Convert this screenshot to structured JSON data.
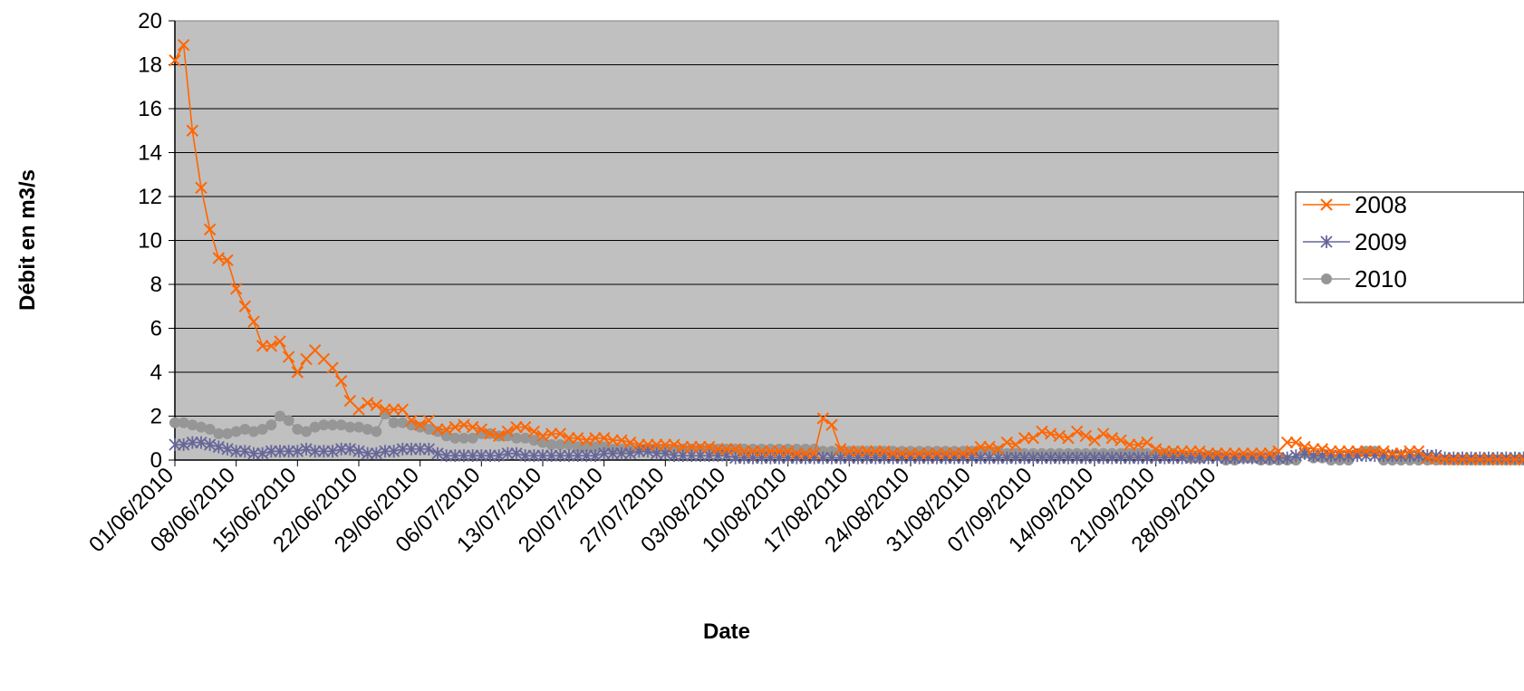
{
  "chart_data": {
    "type": "line",
    "title": "",
    "xlabel": "Date",
    "ylabel": "Débit en m3/s",
    "x_start": "01/06/2010",
    "x_end": "05/10/2010",
    "xlim": [
      "01/06/2010",
      "05/10/2010"
    ],
    "ylim": [
      0,
      20
    ],
    "y_ticks": [
      0,
      2,
      4,
      6,
      8,
      10,
      12,
      14,
      16,
      18,
      20
    ],
    "x_ticks": [
      "01/06/2010",
      "08/06/2010",
      "15/06/2010",
      "22/06/2010",
      "29/06/2010",
      "06/07/2010",
      "13/07/2010",
      "20/07/2010",
      "27/07/2010",
      "03/08/2010",
      "10/08/2010",
      "17/08/2010",
      "24/08/2010",
      "31/08/2010",
      "07/09/2010",
      "14/09/2010",
      "21/09/2010",
      "28/09/2010"
    ],
    "grid": true,
    "plot_background": "#c0c0c0",
    "legend_position": "right",
    "series": [
      {
        "name": "2008",
        "color": "#ff6600",
        "marker": "x",
        "values": [
          18.2,
          18.9,
          15.0,
          12.4,
          10.5,
          9.2,
          9.1,
          7.8,
          7.0,
          6.3,
          5.2,
          5.2,
          5.4,
          4.7,
          4.0,
          4.6,
          5.0,
          4.6,
          4.2,
          3.6,
          2.7,
          2.3,
          2.6,
          2.5,
          2.3,
          2.3,
          2.3,
          1.8,
          1.6,
          1.8,
          1.4,
          1.4,
          1.5,
          1.6,
          1.5,
          1.4,
          1.2,
          1.1,
          1.3,
          1.5,
          1.5,
          1.3,
          1.1,
          1.2,
          1.2,
          1.0,
          1.0,
          0.9,
          1.0,
          1.0,
          0.9,
          0.9,
          0.8,
          0.7,
          0.7,
          0.7,
          0.7,
          0.7,
          0.6,
          0.6,
          0.6,
          0.6,
          0.5,
          0.5,
          0.5,
          0.4,
          0.4,
          0.4,
          0.4,
          0.4,
          0.4,
          0.3,
          0.3,
          0.3,
          1.9,
          1.6,
          0.5,
          0.4,
          0.4,
          0.4,
          0.4,
          0.4,
          0.3,
          0.3,
          0.3,
          0.3,
          0.3,
          0.3,
          0.3,
          0.3,
          0.3,
          0.4,
          0.6,
          0.6,
          0.5,
          0.8,
          0.7,
          1.0,
          1.0,
          1.3,
          1.2,
          1.1,
          1.0,
          1.3,
          1.1,
          0.9,
          1.2,
          1.0,
          0.9,
          0.7,
          0.7,
          0.8,
          0.5,
          0.4,
          0.4,
          0.4,
          0.4,
          0.4,
          0.3,
          0.3,
          0.3,
          0.3,
          0.3,
          0.3,
          0.3,
          0.3,
          0.4,
          0.8,
          0.8,
          0.6,
          0.5,
          0.5,
          0.4,
          0.4,
          0.4,
          0.4,
          0.4,
          0.4,
          0.4,
          0.3,
          0.3,
          0.4,
          0.4,
          0.1,
          0.05,
          0.03,
          0.02,
          0.02,
          0.02,
          0.02,
          0.02,
          0.02,
          0.02,
          0.02,
          0.02,
          0.02,
          0.02,
          0.02,
          0.02,
          0.02,
          0.02,
          0.02,
          0.02,
          0.02,
          0.02,
          0.02,
          0.02,
          0.02,
          0.02,
          0.02,
          0.02,
          0.02,
          0.02,
          0.02,
          0.02,
          0.02,
          0.02,
          0.02,
          0.02,
          0.02,
          0.02,
          0.02,
          0.02,
          0.02,
          0.02
        ]
      },
      {
        "name": "2009",
        "color": "#666699",
        "marker": "asterisk",
        "values": [
          0.7,
          0.7,
          0.8,
          0.8,
          0.7,
          0.6,
          0.5,
          0.4,
          0.4,
          0.3,
          0.3,
          0.4,
          0.4,
          0.4,
          0.4,
          0.5,
          0.4,
          0.4,
          0.4,
          0.5,
          0.5,
          0.4,
          0.3,
          0.3,
          0.4,
          0.4,
          0.5,
          0.5,
          0.5,
          0.5,
          0.3,
          0.2,
          0.2,
          0.2,
          0.2,
          0.2,
          0.2,
          0.2,
          0.3,
          0.3,
          0.2,
          0.2,
          0.2,
          0.2,
          0.2,
          0.2,
          0.2,
          0.2,
          0.2,
          0.3,
          0.3,
          0.3,
          0.3,
          0.4,
          0.4,
          0.3,
          0.3,
          0.2,
          0.2,
          0.2,
          0.2,
          0.2,
          0.2,
          0.2,
          0.1,
          0.1,
          0.1,
          0.1,
          0.1,
          0.1,
          0.1,
          0.1,
          0.1,
          0.1,
          0.1,
          0.1,
          0.1,
          0.1,
          0.1,
          0.1,
          0.1,
          0.1,
          0.1,
          0.1,
          0.1,
          0.1,
          0.1,
          0.1,
          0.1,
          0.1,
          0.1,
          0.1,
          0.1,
          0.1,
          0.1,
          0.1,
          0.1,
          0.1,
          0.1,
          0.1,
          0.1,
          0.1,
          0.1,
          0.1,
          0.1,
          0.1,
          0.1,
          0.1,
          0.1,
          0.1,
          0.1,
          0.1,
          0.1,
          0.1,
          0.1,
          0.1,
          0.1,
          0.1,
          0.1,
          0.1,
          0.1,
          0.1,
          0.1,
          0.1,
          0.1,
          0.1,
          0.1,
          0.1,
          0.2,
          0.3,
          0.2,
          0.2,
          0.2,
          0.2,
          0.2,
          0.2,
          0.2,
          0.2,
          0.2,
          0.2,
          0.2,
          0.2,
          0.2,
          0.2,
          0.2,
          0.1,
          0.1,
          0.1,
          0.1,
          0.1,
          0.1,
          0.1,
          0.1,
          0.1,
          0.1,
          0.1,
          0.2,
          0.2,
          0.2,
          0.2,
          0.2,
          0.2,
          0.2,
          0.2,
          0.2,
          0.2,
          0.2,
          0.2,
          0.2,
          0.2,
          0.2,
          0.2,
          0.2,
          0.2,
          0.2,
          0.2,
          0.2,
          0.2,
          0.2,
          0.2,
          0.2,
          0.2,
          0.2,
          0.2,
          0.2,
          0.2,
          0.2,
          0.2,
          0.2
        ]
      },
      {
        "name": "2010",
        "color": "#969696",
        "marker": "circle",
        "values": [
          1.7,
          1.7,
          1.6,
          1.5,
          1.4,
          1.2,
          1.2,
          1.3,
          1.4,
          1.3,
          1.4,
          1.6,
          2.0,
          1.8,
          1.4,
          1.3,
          1.5,
          1.6,
          1.6,
          1.6,
          1.5,
          1.5,
          1.4,
          1.3,
          2.1,
          1.7,
          1.7,
          1.6,
          1.5,
          1.4,
          1.3,
          1.1,
          1.0,
          1.0,
          1.0,
          1.2,
          1.2,
          1.1,
          1.1,
          1.0,
          1.0,
          0.9,
          0.8,
          0.7,
          0.7,
          0.7,
          0.6,
          0.6,
          0.6,
          0.6,
          0.5,
          0.5,
          0.5,
          0.5,
          0.5,
          0.5,
          0.5,
          0.5,
          0.5,
          0.5,
          0.5,
          0.5,
          0.5,
          0.5,
          0.5,
          0.5,
          0.5,
          0.5,
          0.5,
          0.5,
          0.5,
          0.5,
          0.5,
          0.5,
          0.4,
          0.4,
          0.4,
          0.4,
          0.4,
          0.4,
          0.4,
          0.4,
          0.4,
          0.4,
          0.4,
          0.4,
          0.4,
          0.4,
          0.4,
          0.4,
          0.4,
          0.4,
          0.4,
          0.4,
          0.4,
          0.3,
          0.3,
          0.3,
          0.3,
          0.3,
          0.3,
          0.3,
          0.3,
          0.3,
          0.3,
          0.3,
          0.3,
          0.3,
          0.3,
          0.3,
          0.3,
          0.3,
          0.3,
          0.3,
          0.3,
          0.2,
          0.1,
          0.1,
          0.2,
          0.2,
          0.0,
          0.0,
          0.1,
          0.1,
          0.0,
          0.0,
          0.0,
          0.0,
          0.0,
          0.3,
          0.1,
          0.1,
          0.0,
          0.0,
          0.0,
          0.3,
          0.4,
          0.4,
          0.0,
          0.0,
          0.0,
          0.0,
          0.0,
          0.0,
          0.0,
          0.0,
          0.0,
          0.0,
          0.0,
          0.0,
          0.0,
          0.0,
          0.0,
          0.0,
          0.0,
          0.0,
          0.0,
          0.0,
          0.0,
          0.0,
          0.0,
          0.0,
          0.0,
          0.0,
          0.0,
          0.0,
          0.0,
          0.0,
          0.3,
          0.3,
          0.3,
          0.3,
          0.3,
          0.3,
          0.3,
          0.1,
          0.1,
          0.1,
          0.1,
          0.1
        ]
      }
    ]
  }
}
